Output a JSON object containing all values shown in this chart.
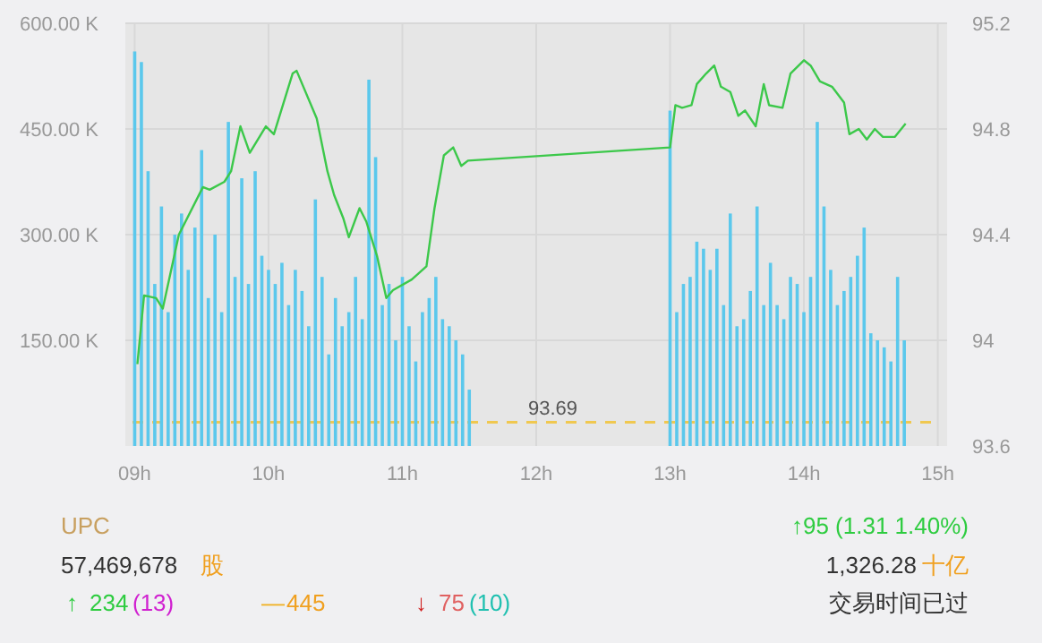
{
  "chart_data": {
    "type": "bar",
    "xlim": [
      8.93,
      15.07
    ],
    "xticks": [
      {
        "value": 9,
        "label": "09h"
      },
      {
        "value": 10,
        "label": "10h"
      },
      {
        "value": 11,
        "label": "11h"
      },
      {
        "value": 12,
        "label": "12h"
      },
      {
        "value": 13,
        "label": "13h"
      },
      {
        "value": 14,
        "label": "14h"
      },
      {
        "value": 15,
        "label": "15h"
      }
    ],
    "ylim": [
      0,
      600
    ],
    "yticks": [
      {
        "value": 150,
        "label": "150.00 K"
      },
      {
        "value": 300,
        "label": "300.00 K"
      },
      {
        "value": 450,
        "label": "450.00 K"
      },
      {
        "value": 600,
        "label": "600.00 K"
      }
    ],
    "y2lim": [
      93.6,
      95.2
    ],
    "y2ticks": [
      93.6,
      94,
      94.4,
      94.8,
      95.2
    ],
    "grid": true,
    "series": [
      {
        "color": "#5bc8ec",
        "x": [
          9.0,
          9.05,
          9.1,
          9.15,
          9.2,
          9.25,
          9.3,
          9.35,
          9.4,
          9.45,
          9.5,
          9.55,
          9.6,
          9.65,
          9.7,
          9.75,
          9.8,
          9.85,
          9.9,
          9.95,
          10.0,
          10.05,
          10.1,
          10.15,
          10.2,
          10.25,
          10.3,
          10.35,
          10.4,
          10.45,
          10.5,
          10.55,
          10.6,
          10.65,
          10.7,
          10.75,
          10.8,
          10.85,
          10.9,
          10.95,
          11.0,
          11.05,
          11.1,
          11.15,
          11.2,
          11.25,
          11.3,
          11.35,
          11.4,
          11.45,
          11.5
        ],
        "values": [
          560,
          545,
          390,
          230,
          340,
          190,
          300,
          330,
          250,
          310,
          420,
          210,
          300,
          190,
          460,
          240,
          380,
          230,
          390,
          270,
          250,
          230,
          260,
          200,
          250,
          220,
          170,
          350,
          240,
          130,
          210,
          170,
          190,
          240,
          180,
          520,
          410,
          200,
          230,
          150,
          240,
          170,
          120,
          190,
          210,
          240,
          180,
          170,
          150,
          130,
          80
        ]
      },
      {
        "color": "#5bc8ec",
        "x": [
          13.0,
          13.05,
          13.1,
          13.15,
          13.2,
          13.25,
          13.3,
          13.35,
          13.4,
          13.45,
          13.5,
          13.55,
          13.6,
          13.65,
          13.7,
          13.75,
          13.8,
          13.85,
          13.9,
          13.95,
          14.0,
          14.05,
          14.1,
          14.15,
          14.2,
          14.25,
          14.3,
          14.35,
          14.4,
          14.45,
          14.5,
          14.55,
          14.6,
          14.65,
          14.7,
          14.75
        ],
        "values": [
          476,
          190,
          230,
          240,
          290,
          280,
          250,
          280,
          200,
          330,
          170,
          180,
          220,
          340,
          200,
          260,
          200,
          180,
          240,
          230,
          190,
          240,
          460,
          340,
          250,
          200,
          220,
          240,
          270,
          310,
          160,
          150,
          140,
          120,
          240,
          150
        ]
      },
      {
        "type": "line",
        "axis": "y2",
        "color": "#3cc84a",
        "x": [
          9.02,
          9.07,
          9.16,
          9.21,
          9.33,
          9.51,
          9.56,
          9.67,
          9.72,
          9.79,
          9.86,
          9.98,
          10.04,
          10.18,
          10.21,
          10.36,
          10.44,
          10.49,
          10.56,
          10.6,
          10.68,
          10.73,
          10.81,
          10.88,
          10.93,
          11.07,
          11.18,
          11.24,
          11.31,
          11.38,
          11.44,
          11.49,
          13.0,
          13.04,
          13.09,
          13.16,
          13.2,
          13.27,
          13.33,
          13.38,
          13.45,
          13.51,
          13.56,
          13.64,
          13.7,
          13.74,
          13.84,
          13.9,
          14.0,
          14.05,
          14.12,
          14.21,
          14.3,
          14.34,
          14.41,
          14.47,
          14.53,
          14.59,
          14.68,
          14.76
        ],
        "values": [
          93.91,
          94.17,
          94.16,
          94.12,
          94.4,
          94.58,
          94.57,
          94.6,
          94.64,
          94.81,
          94.71,
          94.81,
          94.78,
          95.01,
          95.02,
          94.84,
          94.64,
          94.55,
          94.46,
          94.39,
          94.5,
          94.45,
          94.32,
          94.16,
          94.19,
          94.23,
          94.28,
          94.5,
          94.7,
          94.73,
          94.66,
          94.68,
          94.73,
          94.89,
          94.88,
          94.89,
          94.97,
          95.01,
          95.04,
          94.96,
          94.94,
          94.85,
          94.87,
          94.81,
          94.97,
          94.89,
          94.88,
          95.01,
          95.06,
          95.04,
          94.98,
          94.96,
          94.9,
          94.78,
          94.8,
          94.76,
          94.8,
          94.77,
          94.77,
          94.82
        ]
      }
    ],
    "ref_lines": [
      {
        "axis": "y2",
        "value": 93.69,
        "label": "93.69",
        "color": "#f0c850",
        "line_style": "dashed"
      }
    ],
    "annotations": [
      "UPC",
      "57,469,678",
      "股",
      "↑",
      "234",
      "(13)",
      "—",
      "445",
      "↓",
      "75",
      "(10)",
      "↑95  (1.31  1.40%)",
      "1,326.28",
      "十亿",
      "交易时间已过"
    ]
  }
}
